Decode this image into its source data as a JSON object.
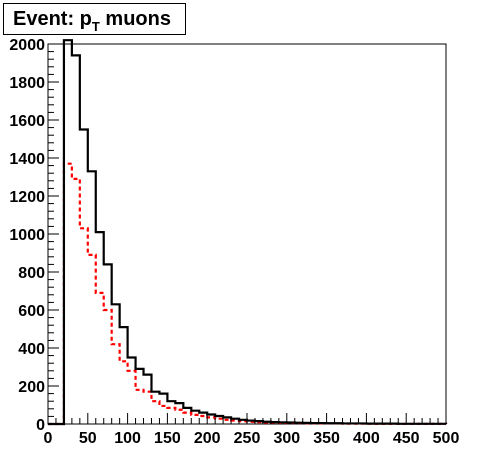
{
  "chart_data": {
    "type": "histogram",
    "title": {
      "prefix": "Event: p",
      "subscript": "T",
      "suffix": " muons"
    },
    "xlabel": "",
    "ylabel": "",
    "xlim": [
      0,
      500
    ],
    "ylim": [
      0,
      2000
    ],
    "bin_width": 10,
    "x_ticks": [
      "0",
      "50",
      "100",
      "150",
      "200",
      "250",
      "300",
      "350",
      "400",
      "450",
      "500"
    ],
    "y_ticks": [
      "0",
      "200",
      "400",
      "600",
      "800",
      "1000",
      "1200",
      "1400",
      "1600",
      "1800",
      "2000"
    ],
    "grid": false,
    "legend": "none",
    "series": [
      {
        "style": "solid",
        "color": "#000000",
        "values": [
          0,
          0,
          2020,
          1940,
          1550,
          1330,
          1010,
          840,
          630,
          510,
          350,
          290,
          260,
          170,
          160,
          120,
          110,
          85,
          70,
          60,
          50,
          42,
          35,
          28,
          22,
          18,
          15,
          12,
          10,
          9,
          8,
          7,
          6,
          5,
          5,
          4,
          4,
          3,
          3,
          3,
          2,
          2,
          2,
          2,
          1,
          1,
          1,
          1,
          1,
          1
        ]
      },
      {
        "style": "dashed",
        "color": "#ff0000",
        "values": [
          0,
          0,
          1370,
          1290,
          1030,
          890,
          690,
          600,
          420,
          330,
          280,
          180,
          170,
          120,
          95,
          85,
          75,
          60,
          48,
          42,
          35,
          28,
          22,
          18,
          15,
          12,
          10,
          8,
          7,
          6,
          5,
          5,
          4,
          4,
          3,
          3,
          3,
          2,
          2,
          2,
          2,
          1,
          1,
          1,
          1,
          1,
          1,
          1,
          1,
          1
        ]
      }
    ]
  },
  "colors": {
    "axis": "#000000",
    "frame": "#000000"
  }
}
